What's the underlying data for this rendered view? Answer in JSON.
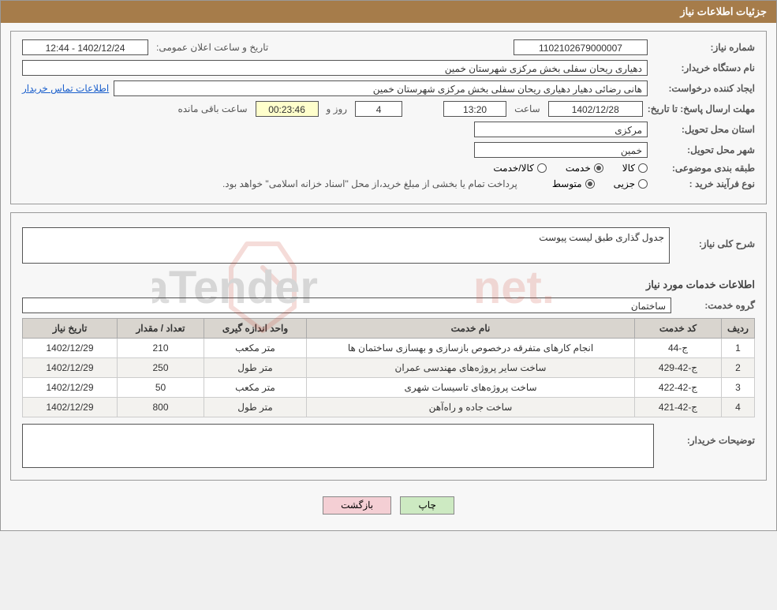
{
  "header": {
    "title": "جزئیات اطلاعات نیاز"
  },
  "need": {
    "number_label": "شماره نیاز:",
    "number": "1102102679000007",
    "pubdate_label": "تاریخ و ساعت اعلان عمومی:",
    "pubdate": "1402/12/24 - 12:44",
    "buyer_org_label": "نام دستگاه خریدار:",
    "buyer_org": "دهیاری ریحان سفلی بخش مرکزی شهرستان خمین",
    "requester_label": "ایجاد کننده درخواست:",
    "requester": "هانی رضائی دهیار دهیاری ریحان سفلی بخش مرکزی شهرستان خمین",
    "contact_link": "اطلاعات تماس خریدار",
    "deadline_label": "مهلت ارسال پاسخ: تا تاریخ:",
    "deadline_date": "1402/12/28",
    "time_label": "ساعت",
    "deadline_time": "13:20",
    "days_val": "4",
    "days_and": "روز و",
    "countdown": "00:23:46",
    "remaining": "ساعت باقی مانده",
    "province_label": "استان محل تحویل:",
    "province": "مرکزی",
    "city_label": "شهر محل تحویل:",
    "city": "خمین",
    "category_label": "طبقه بندی موضوعی:",
    "cat_goods": "کالا",
    "cat_service": "خدمت",
    "cat_goods_service": "کالا/خدمت",
    "process_label": "نوع فرآیند خرید :",
    "proc_small": "جزیی",
    "proc_medium": "متوسط",
    "payment_note": "پرداخت تمام یا بخشی از مبلغ خرید،از محل \"اسناد خزانه اسلامی\" خواهد بود."
  },
  "description": {
    "label": "شرح کلی نیاز:",
    "text": "جدول گذاری طبق لیست پیوست"
  },
  "services": {
    "section_title": "اطلاعات خدمات مورد نیاز",
    "group_label": "گروه خدمت:",
    "group": "ساختمان",
    "columns": {
      "row": "ردیف",
      "code": "کد خدمت",
      "name": "نام خدمت",
      "unit": "واحد اندازه گیری",
      "qty": "تعداد / مقدار",
      "date": "تاریخ نیاز"
    },
    "rows": [
      {
        "n": "1",
        "code": "ج-44",
        "name": "انجام کارهای متفرقه درخصوص بازسازی و بهسازی ساختمان ها",
        "unit": "متر مکعب",
        "qty": "210",
        "date": "1402/12/29"
      },
      {
        "n": "2",
        "code": "ج-42-429",
        "name": "ساخت سایر پروژه‌های مهندسی عمران",
        "unit": "متر طول",
        "qty": "250",
        "date": "1402/12/29"
      },
      {
        "n": "3",
        "code": "ج-42-422",
        "name": "ساخت پروژه‌های تاسیسات شهری",
        "unit": "متر مکعب",
        "qty": "50",
        "date": "1402/12/29"
      },
      {
        "n": "4",
        "code": "ج-42-421",
        "name": "ساخت جاده و راه‌آهن",
        "unit": "متر طول",
        "qty": "800",
        "date": "1402/12/29"
      }
    ]
  },
  "buyer_notes": {
    "label": "توضیحات خریدار:",
    "text": ""
  },
  "buttons": {
    "print": "چاپ",
    "back": "بازگشت"
  },
  "colors": {
    "header_bg": "#a67c4a",
    "link": "#1a5fcc",
    "btn_print": "#cdeac2",
    "btn_back": "#f4cfd4"
  }
}
